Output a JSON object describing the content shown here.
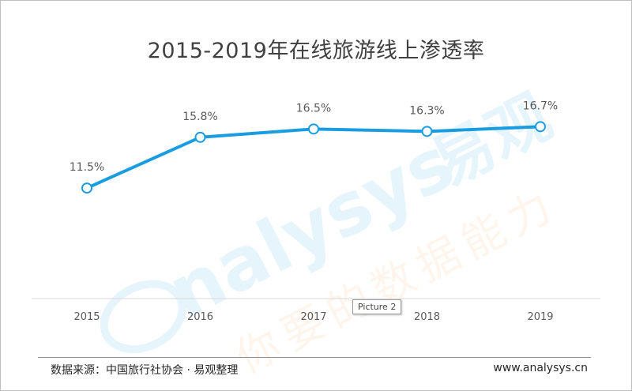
{
  "chart_data": {
    "type": "line",
    "title": "2015-2019年在线旅游线上渗透率",
    "categories": [
      "2015",
      "2016",
      "2017",
      "2018",
      "2019"
    ],
    "series": [
      {
        "values": [
          11.5,
          15.8,
          16.5,
          16.3,
          16.7
        ]
      }
    ],
    "data_labels": [
      "11.5%",
      "15.8%",
      "16.5%",
      "16.3%",
      "16.7%"
    ],
    "xlabel": "",
    "ylabel": "",
    "ylim": [
      0,
      22
    ],
    "grid": false,
    "legend": "none",
    "colors": {
      "line": "#1a9de0",
      "marker_fill": "#ffffff",
      "axis": "#d9d9d9",
      "text": "#595959"
    }
  },
  "footer": {
    "source": "数据来源：中国旅行社协会 · 易观整理",
    "site": "www.analysys.cn"
  },
  "overlay": {
    "picture_tag": "Picture 2"
  },
  "watermark": {
    "brand_latin": "nalysys",
    "brand_cn": "易观",
    "tagline": "你要的数据能力"
  }
}
